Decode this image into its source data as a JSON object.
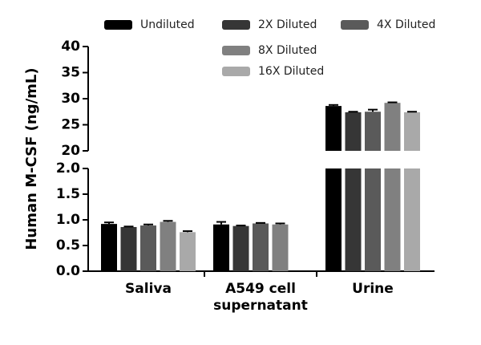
{
  "chart_data": {
    "type": "bar",
    "y_label": "Human M-CSF (ng/mL)",
    "categories": [
      "Saliva",
      "A549 cell supernatant",
      "Urine"
    ],
    "series": [
      {
        "name": "Undiluted",
        "color": "#000000",
        "values": [
          0.92,
          0.91,
          28.6
        ],
        "errors": [
          0.03,
          0.05,
          0.2
        ]
      },
      {
        "name": "2X Diluted",
        "color": "#363636",
        "values": [
          0.86,
          0.88,
          27.4
        ],
        "errors": [
          0.01,
          0.01,
          0.1
        ]
      },
      {
        "name": "4X Diluted",
        "color": "#5a5a5a",
        "values": [
          0.89,
          0.93,
          27.5
        ],
        "errors": [
          0.02,
          0.01,
          0.4
        ]
      },
      {
        "name": "8X Diluted",
        "color": "#808080",
        "values": [
          0.96,
          0.91,
          29.2
        ],
        "errors": [
          0.02,
          0.02,
          0.1
        ]
      },
      {
        "name": "16X Diluted",
        "color": "#a9a9a9",
        "values": [
          0.76,
          null,
          27.4
        ],
        "errors": [
          0.02,
          null,
          0.1
        ]
      }
    ],
    "y_segments": [
      {
        "ylim": [
          0,
          2
        ],
        "yticks": [
          {
            "value": 0,
            "label": "0.0"
          },
          {
            "value": 0.5,
            "label": "0.5"
          },
          {
            "value": 1,
            "label": "1.0"
          },
          {
            "value": 1.5,
            "label": "1.5"
          },
          {
            "value": 2,
            "label": "2.0"
          }
        ]
      },
      {
        "ylim": [
          20,
          40
        ],
        "yticks": [
          20,
          25,
          30,
          35,
          40
        ]
      }
    ]
  }
}
